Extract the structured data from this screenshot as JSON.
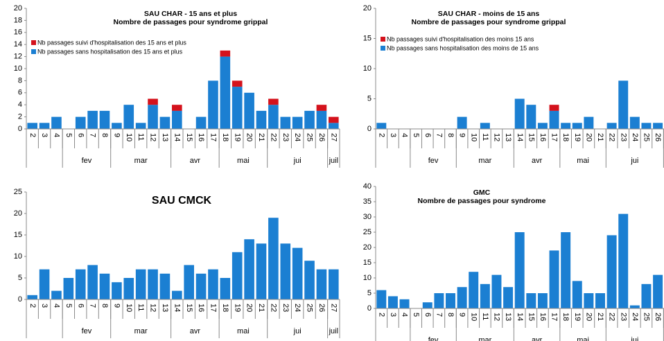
{
  "chart_data": [
    {
      "type": "bar",
      "stacked": true,
      "title": "SAU CHAR - 15 ans et plus",
      "subtitle": "Nombre de passages pour syndrome grippal",
      "categories": [
        "2",
        "3",
        "4",
        "5",
        "6",
        "7",
        "8",
        "9",
        "10",
        "11",
        "12",
        "13",
        "14",
        "15",
        "16",
        "17",
        "18",
        "19",
        "20",
        "21",
        "22",
        "23",
        "24",
        "25",
        "26",
        "27"
      ],
      "months": [
        "fev",
        "mar",
        "avr",
        "mai",
        "jui",
        "juil"
      ],
      "series": [
        {
          "name": "Nb passages sans hospitalisation des 15 ans et plus",
          "color": "#1b7fd2",
          "values": [
            1,
            1,
            2,
            0,
            2,
            3,
            3,
            1,
            4,
            1,
            4,
            2,
            3,
            0,
            2,
            8,
            12,
            7,
            6,
            3,
            4,
            2,
            2,
            3,
            3,
            1
          ]
        },
        {
          "name": "Nb passages suivi d'hospitalisation des 15 ans et plus",
          "color": "#d4121c",
          "values": [
            0,
            0,
            0,
            0,
            0,
            0,
            0,
            0,
            0,
            0,
            1,
            0,
            1,
            0,
            0,
            0,
            1,
            1,
            0,
            0,
            1,
            0,
            0,
            0,
            1,
            1
          ]
        }
      ],
      "ylim": [
        0,
        20
      ],
      "yticks": [
        0,
        2,
        4,
        6,
        8,
        10,
        12,
        14,
        16,
        18,
        20
      ],
      "legend": "top-left"
    },
    {
      "type": "bar",
      "stacked": true,
      "title": "SAU CHAR - moins de 15 ans",
      "subtitle": "Nombre de passages pour syndrome grippal",
      "categories": [
        "2",
        "3",
        "4",
        "5",
        "6",
        "7",
        "8",
        "9",
        "10",
        "11",
        "12",
        "13",
        "14",
        "15",
        "16",
        "17",
        "18",
        "19",
        "20",
        "21",
        "22",
        "23",
        "24",
        "25",
        "26",
        "27"
      ],
      "months": [
        "fev",
        "mar",
        "avr",
        "mai",
        "jui",
        "ju"
      ],
      "series": [
        {
          "name": "Nb passages sans hospitalisation des moins de 15 ans",
          "color": "#1b7fd2",
          "values": [
            1,
            0,
            0,
            0,
            0,
            0,
            0,
            2,
            0,
            1,
            0,
            0,
            5,
            4,
            1,
            3,
            1,
            1,
            2,
            0,
            1,
            8,
            2,
            1,
            1,
            1
          ]
        },
        {
          "name": "Nb passages suivi d'hospitalisation des moins 15 ans",
          "color": "#d4121c",
          "values": [
            0,
            0,
            0,
            0,
            0,
            0,
            0,
            0,
            0,
            0,
            0,
            0,
            0,
            0,
            0,
            1,
            0,
            0,
            0,
            0,
            0,
            0,
            0,
            0,
            0,
            0
          ]
        }
      ],
      "ylim": [
        0,
        20
      ],
      "yticks": [
        0,
        5,
        10,
        15,
        20
      ],
      "legend": "top-left"
    },
    {
      "type": "bar",
      "stacked": true,
      "title": "SAU CMCK",
      "categories": [
        "2",
        "3",
        "4",
        "5",
        "6",
        "7",
        "8",
        "9",
        "10",
        "11",
        "12",
        "13",
        "14",
        "15",
        "16",
        "17",
        "18",
        "19",
        "20",
        "21",
        "22",
        "23",
        "24",
        "25",
        "26",
        "27"
      ],
      "months": [
        "fev",
        "mar",
        "avr",
        "mai",
        "jui",
        "juil"
      ],
      "series": [
        {
          "color": "#1b7fd2",
          "values": [
            1,
            7,
            2,
            5,
            7,
            8,
            6,
            4,
            5,
            7,
            7,
            6,
            2,
            8,
            6,
            7,
            5,
            11,
            14,
            13,
            19,
            13,
            12,
            9,
            7,
            7
          ]
        }
      ],
      "ylim": [
        0,
        25
      ],
      "yticks": [
        0,
        5,
        10,
        15,
        20,
        25
      ]
    },
    {
      "type": "bar",
      "stacked": true,
      "title": "GMC",
      "subtitle": "Nombre de passages pour syndrome",
      "categories": [
        "2",
        "3",
        "4",
        "5",
        "6",
        "7",
        "8",
        "9",
        "10",
        "11",
        "12",
        "13",
        "14",
        "15",
        "16",
        "17",
        "18",
        "19",
        "20",
        "21",
        "22",
        "23",
        "24",
        "25",
        "26",
        "27"
      ],
      "months": [
        "fev",
        "mar",
        "avr",
        "mai",
        "jui",
        "jui"
      ],
      "series": [
        {
          "color": "#1b7fd2",
          "values": [
            6,
            4,
            3,
            0,
            2,
            5,
            5,
            7,
            12,
            8,
            11,
            7,
            25,
            5,
            5,
            19,
            25,
            9,
            5,
            5,
            24,
            31,
            1,
            8,
            11,
            7
          ]
        }
      ],
      "ylim": [
        0,
        40
      ],
      "yticks": [
        0,
        5,
        10,
        15,
        20,
        25,
        30,
        35,
        40
      ]
    }
  ]
}
